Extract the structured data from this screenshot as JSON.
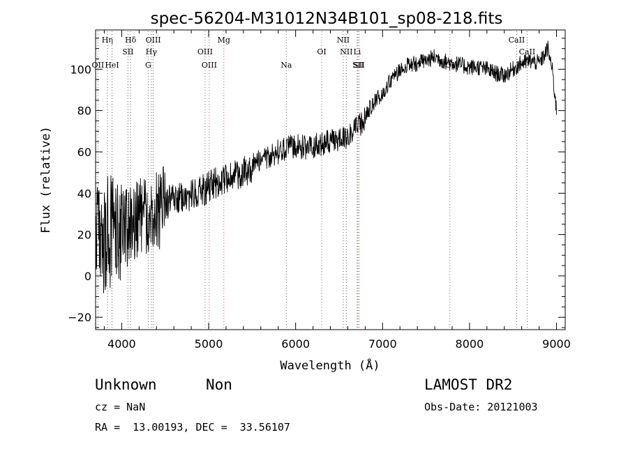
{
  "chart_data": {
    "type": "line",
    "title": "spec-56204-M31012N34B101_sp08-218.fits",
    "xlabel": "Wavelength (Å)",
    "ylabel": "Flux (relative)",
    "xlim": [
      3700,
      9100
    ],
    "ylim": [
      -26,
      119
    ],
    "xticks": [
      4000,
      5000,
      6000,
      7000,
      8000,
      9000
    ],
    "yticks": [
      -20,
      0,
      20,
      40,
      60,
      80,
      100
    ],
    "grid": false,
    "legend": "none",
    "series": [
      {
        "color": "#000000",
        "x": [
          3700,
          3750,
          3800,
          3850,
          3900,
          3950,
          4000,
          4050,
          4100,
          4150,
          4200,
          4250,
          4300,
          4350,
          4400,
          4450,
          4500,
          4600,
          4700,
          4800,
          4900,
          5000,
          5100,
          5200,
          5300,
          5400,
          5500,
          5600,
          5700,
          5800,
          5900,
          6000,
          6100,
          6200,
          6300,
          6400,
          6500,
          6600,
          6700,
          6800,
          6850,
          6900,
          6950,
          7000,
          7050,
          7100,
          7150,
          7200,
          7300,
          7400,
          7500,
          7600,
          7700,
          7800,
          7900,
          8000,
          8100,
          8200,
          8300,
          8400,
          8500,
          8600,
          8700,
          8800,
          8850,
          8900,
          8950,
          9000
        ],
        "y": [
          15,
          20,
          18,
          22,
          20,
          22,
          22,
          24,
          25,
          27,
          28,
          29,
          30,
          30,
          31,
          33,
          35,
          37,
          38,
          39,
          41,
          43,
          45,
          47,
          48,
          50,
          53,
          56,
          58,
          60,
          62,
          63,
          62,
          63,
          64,
          65,
          66,
          68,
          71,
          76,
          81,
          84,
          86,
          89,
          92,
          95,
          97,
          100,
          102,
          103,
          104,
          106,
          104,
          103,
          102,
          101,
          101,
          100,
          98,
          97,
          100,
          103,
          104,
          103,
          106,
          110,
          100,
          80
        ]
      }
    ],
    "lines": [
      {
        "name": "OII",
        "x": 3727
      },
      {
        "name": "Hη",
        "x": 3835
      },
      {
        "name": "HeI",
        "x": 3889
      },
      {
        "name": "Hδ",
        "x": 4102
      },
      {
        "name": "SII",
        "x": 4072
      },
      {
        "name": "OIII",
        "x": 4363
      },
      {
        "name": "Hγ",
        "x": 4341
      },
      {
        "name": "G",
        "x": 4305
      },
      {
        "name": "OIII",
        "x": 4959
      },
      {
        "name": "OIII",
        "x": 5007
      },
      {
        "name": "Mg",
        "x": 5175
      },
      {
        "name": "Na",
        "x": 5893
      },
      {
        "name": "OI",
        "x": 6300
      },
      {
        "name": "NII",
        "x": 6548
      },
      {
        "name": "NII",
        "x": 6583
      },
      {
        "name": "SII",
        "x": 6717
      },
      {
        "name": "SII",
        "x": 6731
      },
      {
        "name": "Li",
        "x": 6708
      },
      {
        "name": "OI",
        "x": 7774
      },
      {
        "name": "CaII",
        "x": 8542
      },
      {
        "name": "CaII",
        "x": 8662
      }
    ]
  },
  "info": {
    "object_class": "Unknown",
    "subclass": "Non",
    "survey": "LAMOST DR2",
    "cz": "cz = NaN",
    "obs_date": "Obs-Date: 20121003",
    "coords": "RA =  13.00193, DEC =  33.56107"
  }
}
